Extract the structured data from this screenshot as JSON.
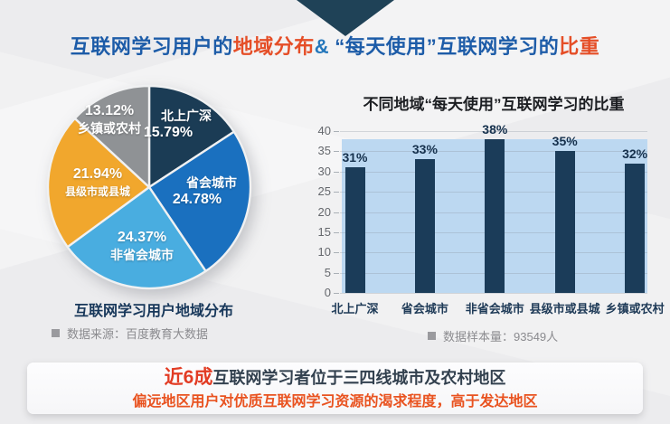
{
  "title": {
    "parts": [
      {
        "text": "互联网学习用户的",
        "color": "#1d5ca8"
      },
      {
        "text": "地域分布",
        "color": "#e54e27"
      },
      {
        "text": "&",
        "color": "#2577bb"
      },
      {
        "text": "“每天使用”",
        "color": "#1d5ca8"
      },
      {
        "text": "互联网学习的",
        "color": "#1d5ca8"
      },
      {
        "text": "比重",
        "color": "#e54e27"
      }
    ]
  },
  "chart_data": [
    {
      "type": "pie",
      "title": "互联网学习用户地域分布",
      "legend_position": "inside",
      "slices": [
        {
          "label": "北上广深",
          "value": 15.79,
          "value_label": "15.79%",
          "color": "#1b3c55"
        },
        {
          "label": "省会城市",
          "value": 24.78,
          "value_label": "24.78%",
          "color": "#1a70bf"
        },
        {
          "label": "非省会城市",
          "value": 24.37,
          "value_label": "24.37%",
          "color": "#49ade0"
        },
        {
          "label": "县级市或县城",
          "value": 21.94,
          "value_label": "21.94%",
          "color": "#f1a72d"
        },
        {
          "label": "乡镇或农村",
          "value": 13.12,
          "value_label": "13.12%",
          "color": "#8f9295"
        }
      ],
      "source_note": "数据来源：百度教育大数据"
    },
    {
      "type": "bar",
      "title": "不同地域“每天使用”互联网学习的比重",
      "categories": [
        "北上广深",
        "省会城市",
        "非省会城市",
        "县级市或县城",
        "乡镇或农村"
      ],
      "values": [
        31,
        33,
        38,
        35,
        32
      ],
      "value_labels": [
        "31%",
        "33%",
        "38%",
        "35%",
        "32%"
      ],
      "ylim": [
        0,
        40
      ],
      "ytick_step": 5,
      "grid": true,
      "bar_color": "#1b3c59",
      "band_color": "#bcd8f1",
      "band_top": 38,
      "sample_note": "数据样本量：93549人"
    }
  ],
  "banner": {
    "line1_highlight": "近6成",
    "line1_rest": "互联网学习者位于三四线城市及农村地区",
    "line2": "偏远地区用户对优质互联网学习资源的渴求程度，高于发达地区"
  }
}
